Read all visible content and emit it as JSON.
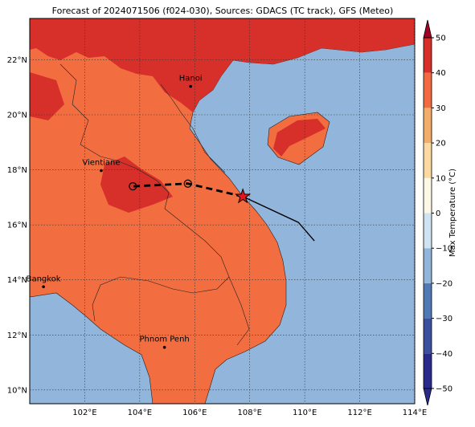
{
  "chart_data": {
    "type": "map",
    "title": "Forecast of 2024071506 (f024-030), Sources: GDACS (TC track), GFS (Meteo)",
    "xlim": [
      100,
      114
    ],
    "ylim": [
      9.5,
      23.5
    ],
    "xticks": [
      {
        "value": 102,
        "label": "102°E"
      },
      {
        "value": 104,
        "label": "104°E"
      },
      {
        "value": 106,
        "label": "106°E"
      },
      {
        "value": 108,
        "label": "108°E"
      },
      {
        "value": 110,
        "label": "110°E"
      },
      {
        "value": 112,
        "label": "112°E"
      },
      {
        "value": 114,
        "label": "114°E"
      }
    ],
    "yticks": [
      {
        "value": 10,
        "label": "10°N"
      },
      {
        "value": 12,
        "label": "12°N"
      },
      {
        "value": 14,
        "label": "14°N"
      },
      {
        "value": 16,
        "label": "16°N"
      },
      {
        "value": 18,
        "label": "18°N"
      },
      {
        "value": 20,
        "label": "20°N"
      },
      {
        "value": 22,
        "label": "22°N"
      }
    ],
    "grid": true,
    "cities": [
      {
        "name": "Hanoi",
        "lon": 105.85,
        "lat": 21.03
      },
      {
        "name": "Vientiane",
        "lon": 102.6,
        "lat": 17.97
      },
      {
        "name": "Bangkok",
        "lon": 100.5,
        "lat": 13.75
      },
      {
        "name": "Phnom Penh",
        "lon": 104.9,
        "lat": 11.55
      }
    ],
    "forecast_track": {
      "lon": [
        107.75,
        105.75,
        103.75
      ],
      "lat": [
        17.03,
        17.5,
        17.4
      ]
    },
    "past_track": {
      "lon": [
        107.75,
        109.77,
        110.35
      ],
      "lat": [
        17.03,
        16.09,
        15.42
      ]
    },
    "colorbar": {
      "label": "Max Temperature (°C)",
      "ticks": [
        {
          "value": -50,
          "label": "−50"
        },
        {
          "value": -40,
          "label": "−40"
        },
        {
          "value": -30,
          "label": "−30"
        },
        {
          "value": -20,
          "label": "−20"
        },
        {
          "value": -10,
          "label": "−10"
        },
        0,
        10,
        20,
        30,
        40,
        50
      ],
      "colors": [
        "#2a2a8c",
        "#3c50a0",
        "#4f7ab6",
        "#92b6db",
        "#cfe4f0",
        "#fdf8e6",
        "#fcd9a0",
        "#f3ad6a",
        "#f26b40",
        "#d7302a",
        "#a30026"
      ]
    }
  }
}
